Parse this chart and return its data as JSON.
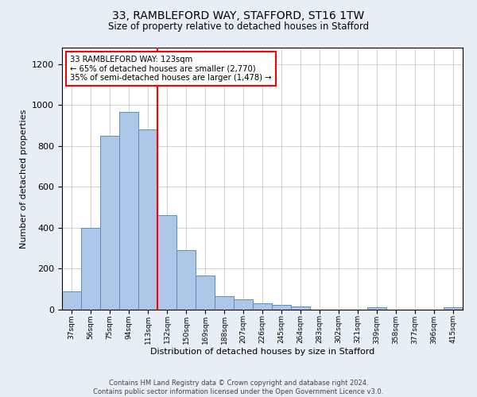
{
  "title1": "33, RAMBLEFORD WAY, STAFFORD, ST16 1TW",
  "title2": "Size of property relative to detached houses in Stafford",
  "xlabel": "Distribution of detached houses by size in Stafford",
  "ylabel": "Number of detached properties",
  "categories": [
    "37sqm",
    "56sqm",
    "75sqm",
    "94sqm",
    "113sqm",
    "132sqm",
    "150sqm",
    "169sqm",
    "188sqm",
    "207sqm",
    "226sqm",
    "245sqm",
    "264sqm",
    "283sqm",
    "302sqm",
    "321sqm",
    "339sqm",
    "358sqm",
    "377sqm",
    "396sqm",
    "415sqm"
  ],
  "values": [
    90,
    400,
    850,
    965,
    880,
    460,
    290,
    165,
    65,
    50,
    30,
    25,
    15,
    0,
    0,
    0,
    10,
    0,
    0,
    0,
    10
  ],
  "bar_color": "#aec6e8",
  "bar_edge_color": "#5b8db8",
  "vline_x": 4.5,
  "vline_color": "red",
  "annotation_text": "33 RAMBLEFORD WAY: 123sqm\n← 65% of detached houses are smaller (2,770)\n35% of semi-detached houses are larger (1,478) →",
  "annotation_box_color": "white",
  "annotation_box_edge_color": "red",
  "ylim": [
    0,
    1280
  ],
  "yticks": [
    0,
    200,
    400,
    600,
    800,
    1000,
    1200
  ],
  "footnote": "Contains HM Land Registry data © Crown copyright and database right 2024.\nContains public sector information licensed under the Open Government Licence v3.0.",
  "bg_color": "#e8eef5",
  "plot_bg_color": "white"
}
